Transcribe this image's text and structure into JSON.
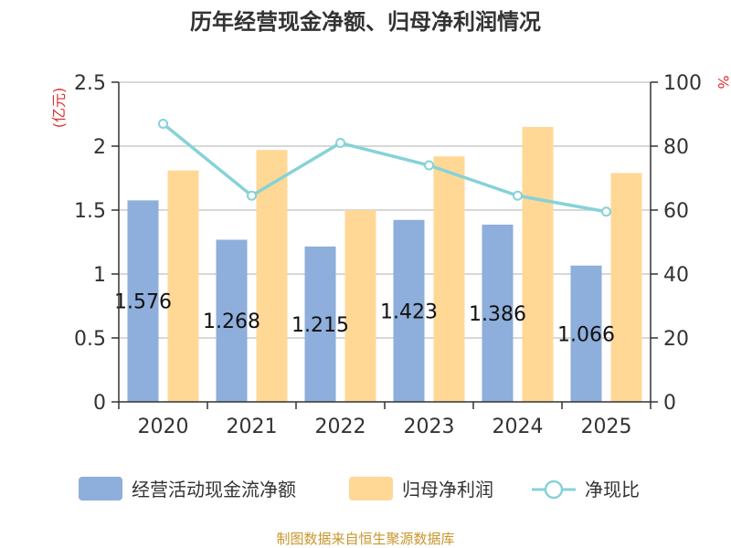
{
  "chart_data": {
    "type": "bar",
    "title": "历年经营现金净额、归母净利润情况",
    "categories": [
      "2020",
      "2021",
      "2022",
      "2023",
      "2024",
      "2025"
    ],
    "series": [
      {
        "name": "经营活动现金流净额",
        "values": [
          1.576,
          1.268,
          1.215,
          1.423,
          1.386,
          1.066
        ],
        "color": "#8eaedb",
        "axis": "left",
        "kind": "bar"
      },
      {
        "name": "归母净利润",
        "values": [
          1.81,
          1.97,
          1.5,
          1.92,
          2.15,
          1.79
        ],
        "color": "#ffd896",
        "axis": "left",
        "kind": "bar"
      },
      {
        "name": "净现比",
        "values": [
          87,
          64.5,
          81,
          74,
          64.5,
          59.5
        ],
        "color": "#86d2d8",
        "axis": "right",
        "kind": "line"
      }
    ],
    "data_labels": [
      "1.576",
      "1.268",
      "1.215",
      "1.423",
      "1.386",
      "1.066"
    ],
    "ylabel_left": "(亿元)",
    "ylabel_right": "%",
    "ylim_left": [
      0,
      2.5
    ],
    "ylim_right": [
      0,
      100
    ],
    "yticks_left": [
      "0",
      "0.5",
      "1",
      "1.5",
      "2",
      "2.5"
    ],
    "yticks_right": [
      "0",
      "20",
      "40",
      "60",
      "80",
      "100"
    ],
    "grid": true,
    "legend_position": "bottom"
  },
  "source_note": "制图数据来自恒生聚源数据库",
  "colors": {
    "axis_label_red": "#e03030",
    "source_gold": "#c8962c",
    "grid": "#cccccc",
    "axis": "#333333"
  }
}
